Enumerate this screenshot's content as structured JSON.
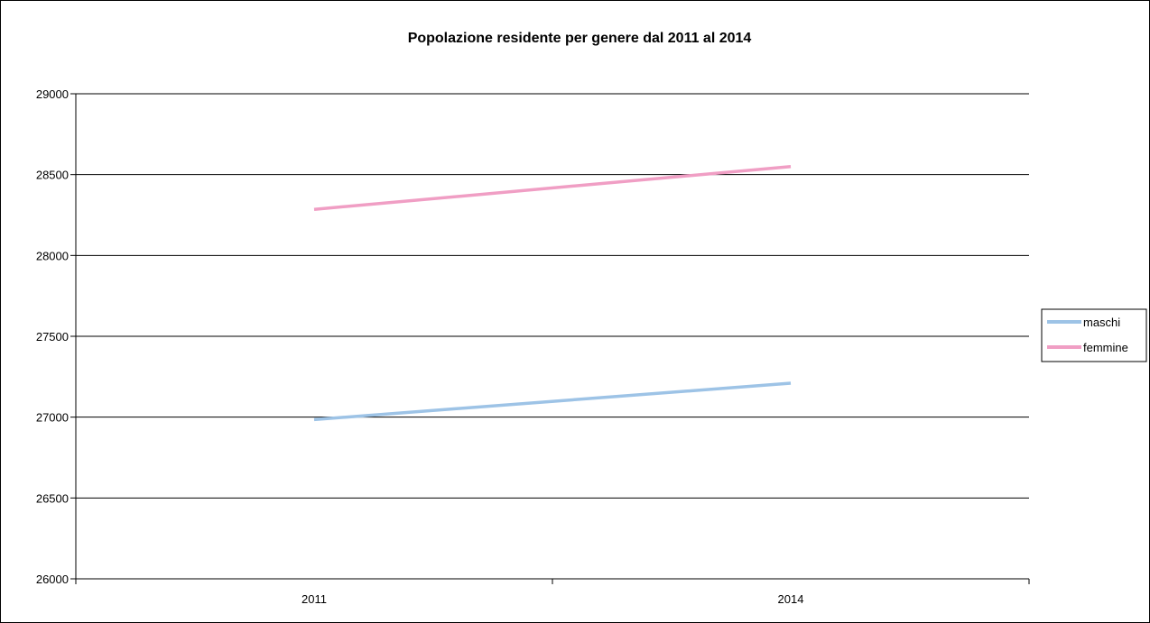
{
  "chart_data": {
    "type": "line",
    "title": "Popolazione residente per genere dal 2011 al 2014",
    "xlabel": "",
    "ylabel": "",
    "categories": [
      "2011",
      "2014"
    ],
    "ylim": [
      26000,
      29000
    ],
    "yticks": [
      26000,
      26500,
      27000,
      27500,
      28000,
      28500,
      29000
    ],
    "grid": true,
    "legend_position": "right",
    "series": [
      {
        "name": "maschi",
        "values": [
          26985,
          27210
        ],
        "color": "#9dc3e6"
      },
      {
        "name": "femmine",
        "values": [
          28285,
          28550
        ],
        "color": "#f09ec4"
      }
    ]
  }
}
